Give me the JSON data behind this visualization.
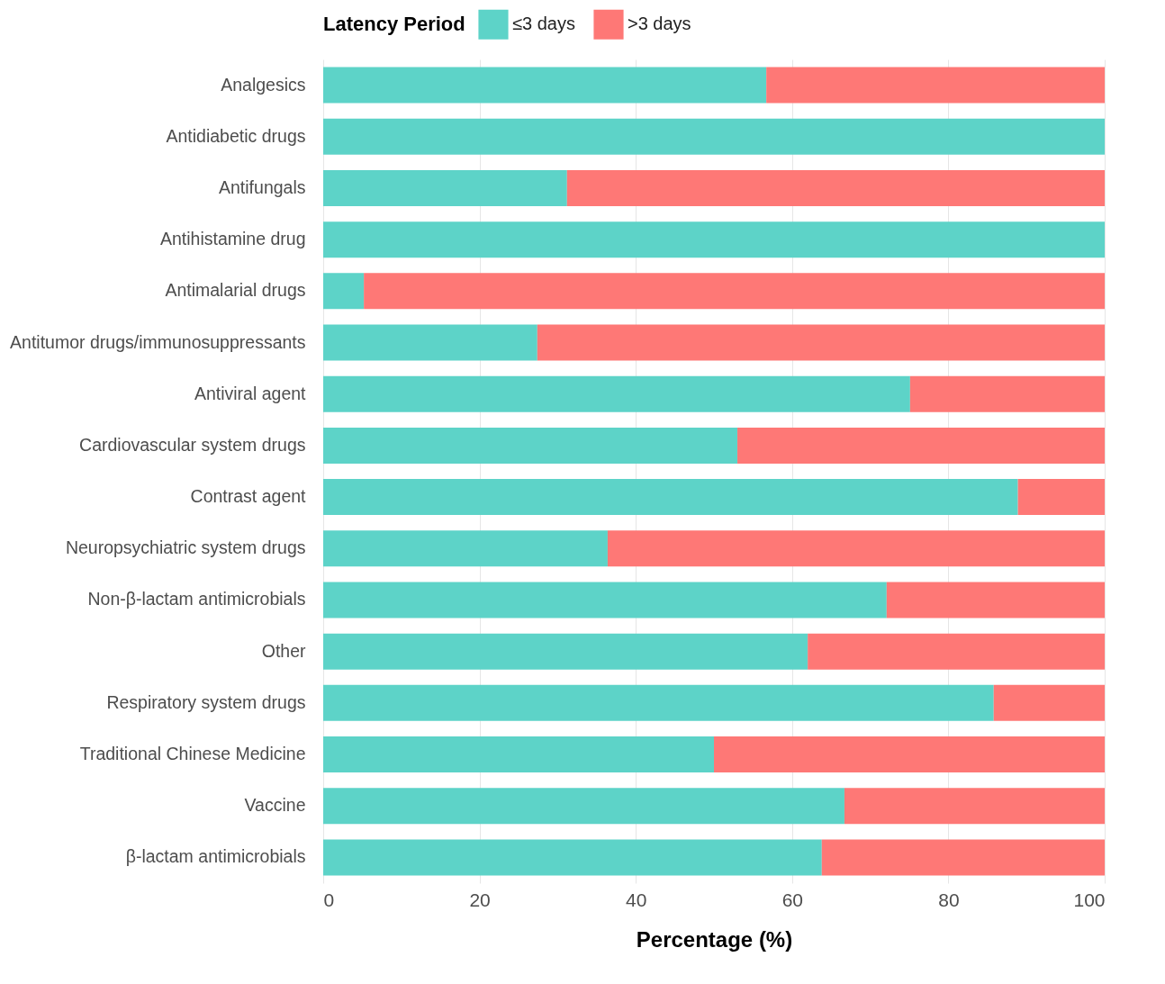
{
  "chart_data": {
    "type": "bar",
    "orientation": "horizontal",
    "stacked": true,
    "xlabel": "Percentage (%)",
    "legend_title": "Latency Period",
    "legend": "top",
    "grid": "x",
    "categories": [
      "Analgesics",
      "Antidiabetic drugs",
      "Antifungals",
      "Antihistamine drug",
      "Antimalarial drugs",
      "Antitumor drugs/immunosuppressants",
      "Antiviral agent",
      "Cardiovascular system drugs",
      "Contrast agent",
      "Neuropsychiatric system drugs",
      "Non-β-lactam antimicrobials",
      "Other",
      "Respiratory system drugs",
      "Traditional Chinese Medicine",
      "Vaccine",
      "β-lactam antimicrobials"
    ],
    "xlim": [
      0,
      100
    ],
    "xticks": [
      0,
      20,
      40,
      60,
      80,
      100
    ],
    "series": [
      {
        "name": "≤3 days",
        "color": "#5dd3c8",
        "values": [
          56.7,
          100,
          31.2,
          100,
          5.2,
          27.4,
          75.1,
          53.0,
          88.9,
          36.4,
          72.1,
          62.0,
          85.8,
          50.0,
          66.7,
          63.8
        ]
      },
      {
        "name": ">3 days",
        "color": "#fe7876",
        "values": [
          43.3,
          0,
          68.8,
          0,
          94.8,
          72.6,
          24.9,
          47.0,
          11.1,
          63.6,
          27.9,
          38.0,
          14.2,
          50.0,
          33.3,
          36.2
        ]
      }
    ]
  }
}
